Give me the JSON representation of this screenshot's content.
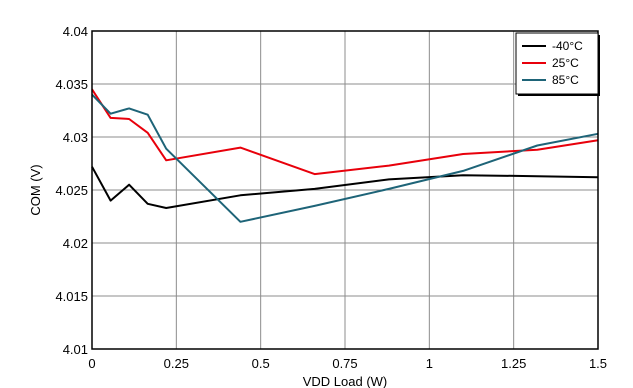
{
  "chart_data": {
    "type": "line",
    "title": "",
    "xlabel": "VDD Load (W)",
    "ylabel": "COM (V)",
    "xlim": [
      0,
      1.5
    ],
    "ylim": [
      4.01,
      4.04
    ],
    "x_ticks": [
      "0",
      "0.25",
      "0.5",
      "0.75",
      "1",
      "1.25",
      "1.5"
    ],
    "y_ticks": [
      "4.01",
      "4.015",
      "4.02",
      "4.025",
      "4.03",
      "4.035",
      "4.04"
    ],
    "grid": true,
    "legend_position": "top-right",
    "series": [
      {
        "name": "-40°C",
        "color": "#000000",
        "points": [
          [
            0,
            4.0272
          ],
          [
            0.055,
            4.024
          ],
          [
            0.11,
            4.0255
          ],
          [
            0.165,
            4.0237
          ],
          [
            0.22,
            4.0233
          ],
          [
            0.44,
            4.0245
          ],
          [
            0.66,
            4.0251
          ],
          [
            0.88,
            4.026
          ],
          [
            1.1,
            4.0264
          ],
          [
            1.32,
            4.0263
          ],
          [
            1.5,
            4.0262
          ]
        ]
      },
      {
        "name": "25°C",
        "color": "#e8000b",
        "points": [
          [
            0,
            4.0345
          ],
          [
            0.055,
            4.0318
          ],
          [
            0.11,
            4.0317
          ],
          [
            0.165,
            4.0304
          ],
          [
            0.22,
            4.0278
          ],
          [
            0.44,
            4.029
          ],
          [
            0.66,
            4.0265
          ],
          [
            0.88,
            4.0273
          ],
          [
            1.1,
            4.0284
          ],
          [
            1.32,
            4.0288
          ],
          [
            1.5,
            4.0297
          ]
        ]
      },
      {
        "name": "85°C",
        "color": "#1e6478",
        "points": [
          [
            0,
            4.034
          ],
          [
            0.055,
            4.0322
          ],
          [
            0.11,
            4.0327
          ],
          [
            0.165,
            4.0321
          ],
          [
            0.22,
            4.0289
          ],
          [
            0.44,
            4.022
          ],
          [
            0.66,
            4.0235
          ],
          [
            0.88,
            4.0251
          ],
          [
            1.1,
            4.0268
          ],
          [
            1.32,
            4.0292
          ],
          [
            1.5,
            4.0303
          ]
        ]
      }
    ]
  }
}
